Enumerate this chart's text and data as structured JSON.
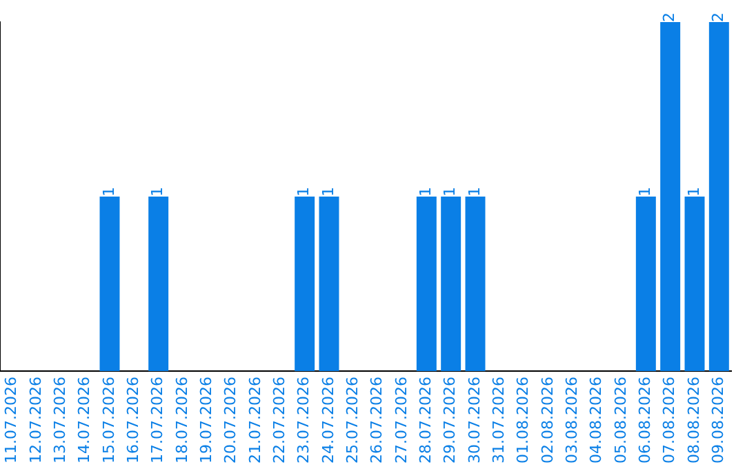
{
  "chart_data": {
    "type": "bar",
    "categories": [
      "11.07.2026",
      "12.07.2026",
      "13.07.2026",
      "14.07.2026",
      "15.07.2026",
      "16.07.2026",
      "17.07.2026",
      "18.07.2026",
      "19.07.2026",
      "20.07.2026",
      "21.07.2026",
      "22.07.2026",
      "23.07.2026",
      "24.07.2026",
      "25.07.2026",
      "26.07.2026",
      "27.07.2026",
      "28.07.2026",
      "29.07.2026",
      "30.07.2026",
      "31.07.2026",
      "01.08.2026",
      "02.08.2026",
      "03.08.2026",
      "04.08.2026",
      "05.08.2026",
      "06.08.2026",
      "07.08.2026",
      "08.08.2026",
      "09.08.2026"
    ],
    "values": [
      0,
      0,
      0,
      0,
      1,
      0,
      1,
      0,
      0,
      0,
      0,
      0,
      1,
      1,
      0,
      0,
      0,
      1,
      1,
      1,
      0,
      0,
      0,
      0,
      0,
      0,
      1,
      2,
      1,
      2
    ],
    "value_labels": [
      null,
      null,
      null,
      null,
      "1",
      null,
      "1",
      null,
      null,
      null,
      null,
      null,
      "1",
      "1",
      null,
      null,
      null,
      "1",
      "1",
      "1",
      null,
      null,
      null,
      null,
      null,
      null,
      "1",
      "2",
      "1",
      "2"
    ],
    "color": "#0a7fe6",
    "ylim": [
      0,
      2
    ],
    "tick_labels": "x",
    "grid": false,
    "legend": false
  }
}
